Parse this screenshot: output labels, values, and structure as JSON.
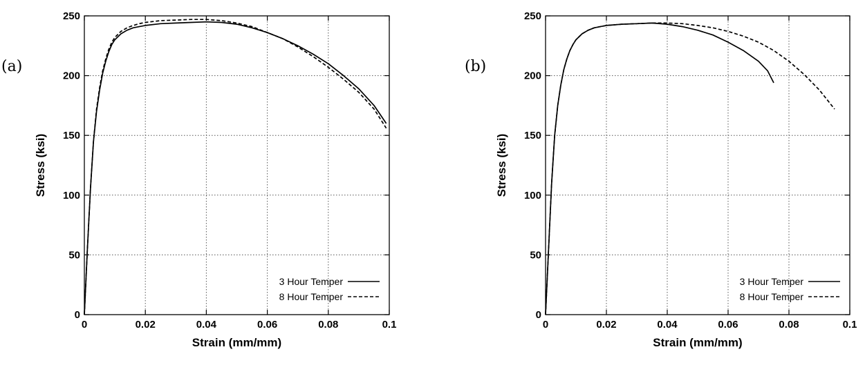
{
  "chart_data": [
    {
      "type": "line",
      "panel_label": "(a)",
      "xlabel": "Strain (mm/mm)",
      "ylabel": "Stress (ksi)",
      "xlim": [
        0,
        0.1
      ],
      "ylim": [
        0,
        250
      ],
      "xticks": [
        0,
        0.02,
        0.04,
        0.06,
        0.08,
        0.1
      ],
      "xtick_labels": [
        "0",
        "0.02",
        "0.04",
        "0.06",
        "0.08",
        "0.1"
      ],
      "yticks": [
        0,
        50,
        100,
        150,
        200,
        250
      ],
      "ytick_labels": [
        "0",
        "50",
        "100",
        "150",
        "200",
        "250"
      ],
      "grid": true,
      "legend_position": "bottom-right",
      "series": [
        {
          "name": "3 Hour Temper",
          "line_style": "solid",
          "x": [
            0,
            0.001,
            0.002,
            0.003,
            0.004,
            0.005,
            0.006,
            0.007,
            0.008,
            0.009,
            0.01,
            0.012,
            0.014,
            0.016,
            0.018,
            0.02,
            0.025,
            0.03,
            0.035,
            0.04,
            0.045,
            0.05,
            0.055,
            0.06,
            0.065,
            0.07,
            0.075,
            0.08,
            0.085,
            0.09,
            0.095,
            0.099
          ],
          "y": [
            0,
            55,
            105,
            145,
            170,
            188,
            202,
            212,
            220,
            226,
            230,
            235,
            238,
            240,
            241,
            242,
            243.5,
            244,
            244.5,
            245,
            244.5,
            243,
            240,
            236,
            231,
            225,
            218,
            210,
            200,
            189,
            175,
            160
          ]
        },
        {
          "name": "8 Hour Temper",
          "line_style": "dashed",
          "x": [
            0,
            0.001,
            0.002,
            0.003,
            0.004,
            0.005,
            0.006,
            0.007,
            0.008,
            0.009,
            0.01,
            0.012,
            0.014,
            0.016,
            0.018,
            0.02,
            0.025,
            0.03,
            0.035,
            0.04,
            0.045,
            0.05,
            0.055,
            0.06,
            0.065,
            0.07,
            0.075,
            0.08,
            0.085,
            0.09,
            0.095,
            0.099
          ],
          "y": [
            0,
            55,
            105,
            145,
            172,
            190,
            204,
            214,
            222,
            228,
            232,
            237,
            240,
            242,
            243.5,
            244.5,
            246,
            246.5,
            247,
            247,
            246,
            244,
            241,
            236,
            231,
            224,
            216,
            207,
            197,
            186,
            172,
            156
          ]
        }
      ]
    },
    {
      "type": "line",
      "panel_label": "(b)",
      "xlabel": "Strain (mm/mm)",
      "ylabel": "Stress (ksi)",
      "xlim": [
        0,
        0.1
      ],
      "ylim": [
        0,
        250
      ],
      "xticks": [
        0,
        0.02,
        0.04,
        0.06,
        0.08,
        0.1
      ],
      "xtick_labels": [
        "0",
        "0.02",
        "0.04",
        "0.06",
        "0.08",
        "0.1"
      ],
      "yticks": [
        0,
        50,
        100,
        150,
        200,
        250
      ],
      "ytick_labels": [
        "0",
        "50",
        "100",
        "150",
        "200",
        "250"
      ],
      "grid": true,
      "legend_position": "bottom-right",
      "series": [
        {
          "name": "3 Hour Temper",
          "line_style": "solid",
          "x": [
            0,
            0.001,
            0.002,
            0.003,
            0.004,
            0.005,
            0.006,
            0.007,
            0.008,
            0.009,
            0.01,
            0.012,
            0.014,
            0.016,
            0.018,
            0.02,
            0.025,
            0.03,
            0.035,
            0.04,
            0.045,
            0.05,
            0.055,
            0.06,
            0.065,
            0.07,
            0.073,
            0.075
          ],
          "y": [
            0,
            55,
            110,
            150,
            175,
            192,
            205,
            214,
            221,
            226,
            230,
            235,
            238,
            240,
            241,
            242,
            243,
            243.5,
            244,
            243,
            241,
            238,
            234,
            228,
            221,
            212,
            204,
            194
          ]
        },
        {
          "name": "8 Hour Temper",
          "line_style": "dashed",
          "x": [
            0,
            0.001,
            0.002,
            0.003,
            0.004,
            0.005,
            0.006,
            0.007,
            0.008,
            0.009,
            0.01,
            0.012,
            0.014,
            0.016,
            0.018,
            0.02,
            0.025,
            0.03,
            0.035,
            0.04,
            0.045,
            0.05,
            0.055,
            0.06,
            0.065,
            0.07,
            0.075,
            0.08,
            0.085,
            0.09,
            0.095
          ],
          "y": [
            0,
            55,
            110,
            150,
            175,
            192,
            205,
            214,
            221,
            226,
            230,
            235,
            238,
            240,
            241,
            242,
            243,
            243.5,
            244,
            244,
            243.5,
            242,
            240,
            237,
            233,
            228,
            221,
            212,
            201,
            188,
            172
          ]
        }
      ]
    }
  ]
}
